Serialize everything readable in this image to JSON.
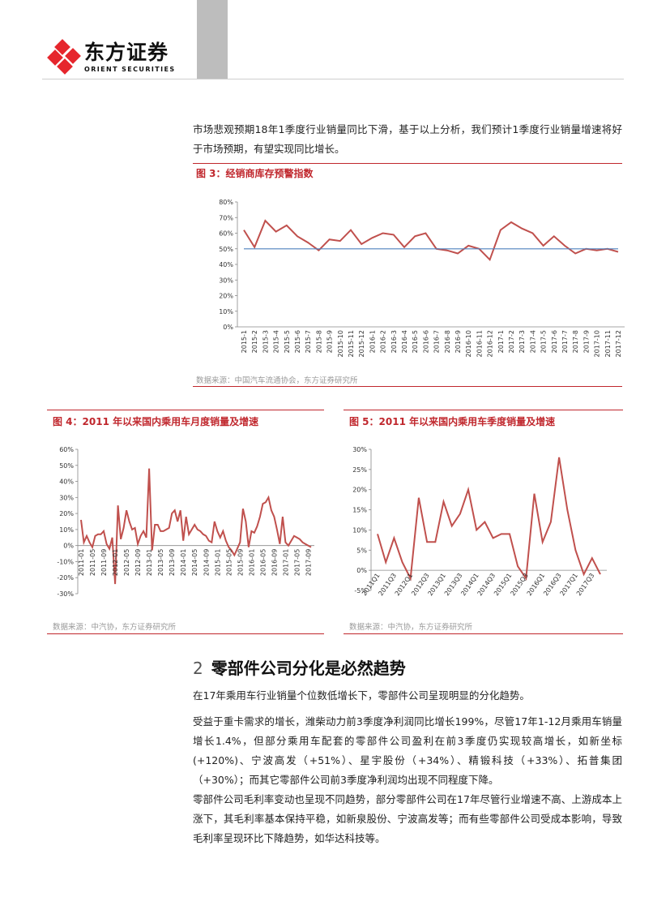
{
  "header": {
    "brand_cn": "东方证券",
    "brand_en": "ORIENT SECURITIES",
    "brand_color": "#e6262d"
  },
  "intro_text": "市场悲观预期18年1季度行业销量同比下滑，基于以上分析，我们预计1季度行业销量增速将好于市场预期，有望实现同比增长。",
  "figure3": {
    "title": "图 3：经销商库存预警指数",
    "source": "数据来源：中国汽车流通协会，东方证券研究所",
    "chart_data": {
      "type": "line",
      "title": "",
      "xlabel": "",
      "ylabel": "",
      "ylim": [
        0,
        80
      ],
      "yticks": [
        "0%",
        "10%",
        "20%",
        "30%",
        "40%",
        "50%",
        "60%",
        "70%",
        "80%"
      ],
      "x": [
        "2015-1",
        "2015-2",
        "2015-3",
        "2015-4",
        "2015-5",
        "2015-6",
        "2015-7",
        "2015-8",
        "2015-9",
        "2015-10",
        "2015-11",
        "2015-12",
        "2016-1",
        "2016-2",
        "2016-3",
        "2016-4",
        "2016-5",
        "2016-6",
        "2016-7",
        "2016-8",
        "2016-9",
        "2016-10",
        "2016-11",
        "2016-12",
        "2017-1",
        "2017-2",
        "2017-3",
        "2017-4",
        "2017-5",
        "2017-6",
        "2017-7",
        "2017-8",
        "2017-9",
        "2017-10",
        "2017-11",
        "2017-12"
      ],
      "xlabels": [
        "2015-1",
        "2015-2",
        "2015-3",
        "2015-4",
        "2015-5",
        "2015-6",
        "2015-7",
        "2015-8",
        "2015-9",
        "2015-10",
        "2015-11",
        "2015-12",
        "2016-1",
        "2016-2",
        "2016-3",
        "2016-4",
        "2016-5",
        "2016-6",
        "2016-7",
        "2016-8",
        "2016-9",
        "2016-10",
        "2016-11",
        "2016-12",
        "2017-1",
        "2017-2",
        "2017-3",
        "2017-4",
        "2017-5",
        "2017-6",
        "2017-7",
        "2017-8",
        "2017-9",
        "2017-10",
        "2017-11",
        "2017-12"
      ],
      "series": [
        {
          "values": [
            62,
            51,
            68,
            61,
            65,
            58,
            54,
            49,
            56,
            55,
            62,
            53,
            57,
            60,
            59,
            51,
            58,
            60,
            50,
            49,
            47,
            52,
            50,
            43,
            62,
            67,
            63,
            60,
            52,
            58,
            52,
            47,
            50,
            49,
            50,
            48
          ],
          "color": "#c0504d"
        },
        {
          "values": [
            50,
            50,
            50,
            50,
            50,
            50,
            50,
            50,
            50,
            50,
            50,
            50,
            50,
            50,
            50,
            50,
            50,
            50,
            50,
            50,
            50,
            50,
            50,
            50,
            50,
            50,
            50,
            50,
            50,
            50,
            50,
            50,
            50,
            50,
            50,
            50
          ],
          "color": "#4f81bd"
        }
      ],
      "grid": false,
      "legend": "none"
    }
  },
  "figure4": {
    "title": "图 4：2011 年以来国内乘用车月度销量及增速",
    "source": "数据来源：中汽协，东方证券研究所",
    "chart_data": {
      "type": "line",
      "title": "",
      "xlabel": "",
      "ylabel": "",
      "ylim": [
        -30,
        60
      ],
      "yticks": [
        "-30%",
        "-20%",
        "-10%",
        "0%",
        "10%",
        "20%",
        "30%",
        "40%",
        "50%",
        "60%"
      ],
      "xlabels": [
        "2011-01",
        "2011-05",
        "2011-09",
        "2012-01",
        "2012-05",
        "2012-09",
        "2013-01",
        "2013-05",
        "2013-09",
        "2014-01",
        "2014-05",
        "2014-09",
        "2015-01",
        "2015-05",
        "2015-09",
        "2016-01",
        "2016-05",
        "2016-09",
        "2017-01",
        "2017-05",
        "2017-09"
      ],
      "series": [
        {
          "color": "#c0504d",
          "values": [
            16,
            2,
            6,
            2,
            -1,
            6,
            7,
            7,
            9,
            1,
            -2,
            5,
            -24,
            25,
            4,
            11,
            22,
            15,
            10,
            11,
            1,
            6,
            9,
            5,
            48,
            -3,
            13,
            13,
            9,
            9,
            10,
            11,
            20,
            22,
            15,
            22,
            3,
            18,
            7,
            10,
            13,
            10,
            9,
            7,
            6,
            3,
            2,
            15,
            9,
            5,
            9,
            3,
            -1,
            -3,
            -6,
            -2,
            2,
            23,
            15,
            -1,
            9,
            8,
            12,
            18,
            26,
            27,
            30,
            22,
            18,
            10,
            1,
            18,
            2,
            0,
            3,
            6,
            5,
            4,
            2,
            1,
            0,
            -1
          ]
        }
      ],
      "grid": false,
      "legend": "none"
    }
  },
  "figure5": {
    "title": "图 5：2011 年以来国内乘用车季度销量及增速",
    "source": "数据来源：中汽协，东方证券研究所",
    "chart_data": {
      "type": "line",
      "title": "",
      "xlabel": "",
      "ylabel": "",
      "ylim": [
        -5,
        30
      ],
      "yticks": [
        "-5%",
        "0%",
        "5%",
        "10%",
        "15%",
        "20%",
        "25%",
        "30%"
      ],
      "xlabels": [
        "2011Q1",
        "2011Q3",
        "2012Q1",
        "2012Q3",
        "2013Q1",
        "2013Q3",
        "2014Q1",
        "2014Q3",
        "2015Q1",
        "2015Q3",
        "2016Q1",
        "2016Q3",
        "2017Q1",
        "2017Q3"
      ],
      "series": [
        {
          "color": "#c0504d",
          "values": [
            9,
            2,
            8,
            2,
            -2,
            18,
            7,
            7,
            17,
            11,
            14,
            20,
            10,
            12,
            8,
            9,
            9,
            1,
            -2,
            19,
            7,
            12,
            28,
            15,
            5,
            -1,
            3,
            -1
          ]
        }
      ],
      "grid": false,
      "legend": "none"
    }
  },
  "section2": {
    "number": "2",
    "title": "零部件公司分化是必然趋势"
  },
  "paragraphs": [
    "在17年乘用车行业销量个位数低增长下，零部件公司呈现明显的分化趋势。",
    "受益于重卡需求的增长，潍柴动力前3季度净利润同比增长199%，尽管17年1-12月乘用车销量增长1.4%，但部分乘用车配套的零部件公司盈利在前3季度仍实现较高增长，如新坐标(+120%)、宁波高发（+51%）、星宇股份（+34%）、精锻科技（+33%）、拓普集团（+30%）；而其它零部件公司前3季度净利润均出现不同程度下降。",
    "零部件公司毛利率变动也呈现不同趋势，部分零部件公司在17年尽管行业增速不高、上游成本上涨下，其毛利率基本保持平稳，如新泉股份、宁波高发等；而有些零部件公司受成本影响，导致毛利率呈现环比下降趋势，如华达科技等。"
  ]
}
